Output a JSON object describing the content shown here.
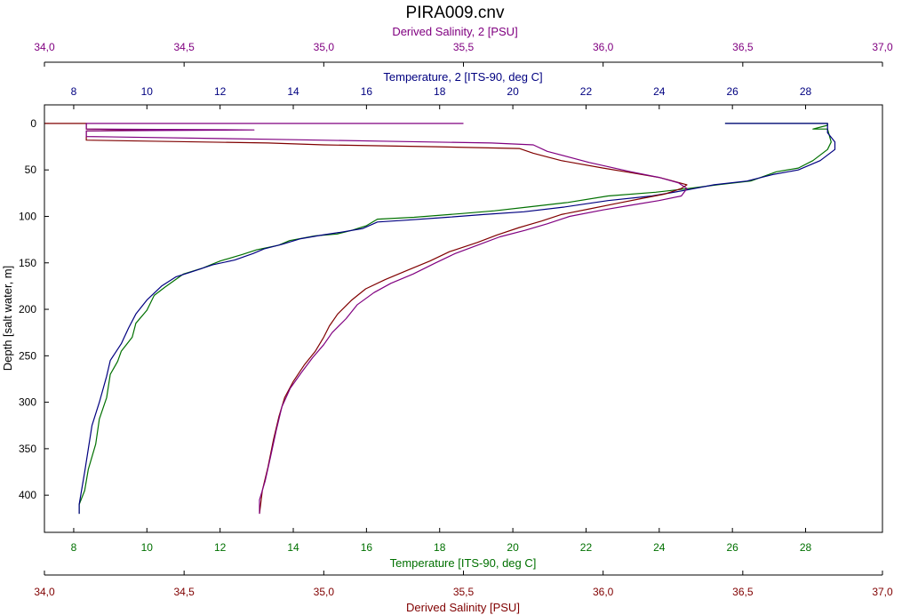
{
  "chart_data": {
    "type": "line",
    "title": "PIRA009.cnv",
    "axes": {
      "depth": {
        "label": "Depth [salt water, m]",
        "range": [
          -20,
          440
        ],
        "ticks": [
          0,
          50,
          100,
          150,
          200,
          250,
          300,
          350,
          400
        ],
        "tick_labels": [
          "0",
          "50",
          "100",
          "150",
          "200",
          "250",
          "300",
          "350",
          "400"
        ],
        "color": "#000000"
      },
      "temperature": {
        "label": "Temperature [ITS-90, deg C]",
        "range": [
          7.2,
          30.1
        ],
        "ticks": [
          8,
          10,
          12,
          14,
          16,
          18,
          20,
          22,
          24,
          26,
          28
        ],
        "tick_labels": [
          "8",
          "10",
          "12",
          "14",
          "16",
          "18",
          "20",
          "22",
          "24",
          "26",
          "28"
        ],
        "color": "#007000"
      },
      "temperature2": {
        "label": "Temperature, 2 [ITS-90, deg C]",
        "range": [
          7.2,
          30.1
        ],
        "ticks": [
          8,
          10,
          12,
          14,
          16,
          18,
          20,
          22,
          24,
          26,
          28
        ],
        "tick_labels": [
          "8",
          "10",
          "12",
          "14",
          "16",
          "18",
          "20",
          "22",
          "24",
          "26",
          "28"
        ],
        "color": "#000080"
      },
      "salinity": {
        "label": "Derived Salinity [PSU]",
        "range": [
          34.0,
          37.0
        ],
        "ticks": [
          34.0,
          34.5,
          35.0,
          35.5,
          36.0,
          36.5,
          37.0
        ],
        "tick_labels": [
          "34,0",
          "34,5",
          "35,0",
          "35,5",
          "36,0",
          "36,5",
          "37,0"
        ],
        "color": "#800000"
      },
      "salinity2": {
        "label": "Derived Salinity, 2 [PSU]",
        "range": [
          34.0,
          37.0
        ],
        "ticks": [
          34.0,
          34.5,
          35.0,
          35.5,
          36.0,
          36.5,
          37.0
        ],
        "tick_labels": [
          "34,0",
          "34,5",
          "35,0",
          "35,5",
          "36,0",
          "36,5",
          "37,0"
        ],
        "color": "#800080"
      }
    },
    "series": [
      {
        "name": "Temperature [ITS-90, deg C]",
        "axis": "temperature",
        "color": "#007000",
        "points": [
          [
            25.8,
            0
          ],
          [
            28.6,
            0
          ],
          [
            28.6,
            2
          ],
          [
            28.2,
            6
          ],
          [
            28.6,
            6
          ],
          [
            28.7,
            20
          ],
          [
            28.6,
            28
          ],
          [
            28.2,
            40
          ],
          [
            27.8,
            48
          ],
          [
            27.2,
            52
          ],
          [
            26.5,
            62
          ],
          [
            25.6,
            66
          ],
          [
            24.8,
            70
          ],
          [
            23.9,
            74
          ],
          [
            22.6,
            78
          ],
          [
            21.5,
            85
          ],
          [
            20.4,
            90
          ],
          [
            19.5,
            94
          ],
          [
            18.6,
            97
          ],
          [
            17.3,
            101
          ],
          [
            16.3,
            103
          ],
          [
            16.0,
            110
          ],
          [
            15.6,
            115
          ],
          [
            15.2,
            119
          ],
          [
            14.6,
            121
          ],
          [
            13.9,
            126
          ],
          [
            13.6,
            131
          ],
          [
            13.0,
            136
          ],
          [
            12.6,
            141
          ],
          [
            12.0,
            148
          ],
          [
            11.5,
            156
          ],
          [
            11.0,
            162
          ],
          [
            10.5,
            176
          ],
          [
            10.2,
            185
          ],
          [
            10.0,
            201
          ],
          [
            9.7,
            215
          ],
          [
            9.6,
            230
          ],
          [
            9.3,
            245
          ],
          [
            9.2,
            256
          ],
          [
            9.0,
            270
          ],
          [
            8.9,
            295
          ],
          [
            8.7,
            318
          ],
          [
            8.6,
            345
          ],
          [
            8.4,
            372
          ],
          [
            8.3,
            395
          ],
          [
            8.15,
            410
          ],
          [
            8.15,
            420
          ]
        ]
      },
      {
        "name": "Temperature, 2 [ITS-90, deg C]",
        "axis": "temperature2",
        "color": "#000080",
        "points": [
          [
            25.8,
            0
          ],
          [
            28.6,
            0
          ],
          [
            28.6,
            3
          ],
          [
            28.6,
            10
          ],
          [
            28.8,
            20
          ],
          [
            28.8,
            28
          ],
          [
            28.4,
            40
          ],
          [
            27.8,
            50
          ],
          [
            27.1,
            55
          ],
          [
            26.4,
            62
          ],
          [
            25.5,
            66
          ],
          [
            24.7,
            72
          ],
          [
            23.8,
            78
          ],
          [
            22.6,
            83
          ],
          [
            21.4,
            90
          ],
          [
            20.3,
            95
          ],
          [
            19.2,
            98
          ],
          [
            18.2,
            101
          ],
          [
            17.1,
            104
          ],
          [
            16.3,
            106
          ],
          [
            15.9,
            113
          ],
          [
            15.3,
            117
          ],
          [
            14.8,
            120
          ],
          [
            14.2,
            124
          ],
          [
            13.7,
            130
          ],
          [
            13.2,
            135
          ],
          [
            12.9,
            140
          ],
          [
            12.4,
            147
          ],
          [
            11.8,
            152
          ],
          [
            11.2,
            160
          ],
          [
            10.8,
            165
          ],
          [
            10.4,
            175
          ],
          [
            10.0,
            190
          ],
          [
            9.7,
            205
          ],
          [
            9.5,
            220
          ],
          [
            9.3,
            237
          ],
          [
            9.0,
            255
          ],
          [
            8.9,
            272
          ],
          [
            8.7,
            300
          ],
          [
            8.5,
            325
          ],
          [
            8.4,
            350
          ],
          [
            8.3,
            375
          ],
          [
            8.2,
            398
          ],
          [
            8.15,
            410
          ],
          [
            8.15,
            420
          ]
        ]
      },
      {
        "name": "Derived Salinity [PSU]",
        "axis": "salinity",
        "color": "#800000",
        "points": [
          [
            34.0,
            0
          ],
          [
            34.15,
            0
          ],
          [
            34.15,
            6
          ],
          [
            34.4,
            7
          ],
          [
            34.15,
            8
          ],
          [
            34.15,
            18
          ],
          [
            34.8,
            21
          ],
          [
            35.0,
            23
          ],
          [
            35.4,
            25
          ],
          [
            35.7,
            27
          ],
          [
            35.75,
            32
          ],
          [
            35.85,
            40
          ],
          [
            36.0,
            48
          ],
          [
            36.1,
            53
          ],
          [
            36.2,
            58
          ],
          [
            36.25,
            62
          ],
          [
            36.3,
            66
          ],
          [
            36.28,
            70
          ],
          [
            36.22,
            76
          ],
          [
            36.15,
            80
          ],
          [
            36.05,
            86
          ],
          [
            35.95,
            92
          ],
          [
            35.85,
            98
          ],
          [
            35.78,
            105
          ],
          [
            35.7,
            112
          ],
          [
            35.62,
            120
          ],
          [
            35.55,
            128
          ],
          [
            35.45,
            138
          ],
          [
            35.38,
            148
          ],
          [
            35.3,
            158
          ],
          [
            35.22,
            168
          ],
          [
            35.15,
            178
          ],
          [
            35.1,
            190
          ],
          [
            35.05,
            205
          ],
          [
            35.02,
            218
          ],
          [
            35.0,
            230
          ],
          [
            34.97,
            245
          ],
          [
            34.93,
            260
          ],
          [
            34.89,
            278
          ],
          [
            34.86,
            295
          ],
          [
            34.84,
            315
          ],
          [
            34.82,
            340
          ],
          [
            34.8,
            370
          ],
          [
            34.78,
            395
          ],
          [
            34.77,
            420
          ]
        ]
      },
      {
        "name": "Derived Salinity, 2 [PSU]",
        "axis": "salinity2",
        "color": "#800080",
        "points": [
          [
            35.5,
            0
          ],
          [
            34.15,
            0
          ],
          [
            34.15,
            6
          ],
          [
            34.75,
            7
          ],
          [
            34.15,
            8
          ],
          [
            34.15,
            14
          ],
          [
            34.8,
            17
          ],
          [
            35.2,
            19
          ],
          [
            35.6,
            21
          ],
          [
            35.75,
            23
          ],
          [
            35.8,
            30
          ],
          [
            35.95,
            42
          ],
          [
            36.1,
            52
          ],
          [
            36.2,
            58
          ],
          [
            36.27,
            64
          ],
          [
            36.3,
            70
          ],
          [
            36.28,
            78
          ],
          [
            36.2,
            83
          ],
          [
            36.1,
            88
          ],
          [
            36.0,
            93
          ],
          [
            35.88,
            100
          ],
          [
            35.8,
            108
          ],
          [
            35.72,
            115
          ],
          [
            35.63,
            122
          ],
          [
            35.55,
            131
          ],
          [
            35.47,
            140
          ],
          [
            35.4,
            150
          ],
          [
            35.32,
            162
          ],
          [
            35.24,
            172
          ],
          [
            35.18,
            182
          ],
          [
            35.12,
            195
          ],
          [
            35.08,
            210
          ],
          [
            35.03,
            225
          ],
          [
            35.0,
            238
          ],
          [
            34.96,
            252
          ],
          [
            34.92,
            268
          ],
          [
            34.88,
            285
          ],
          [
            34.85,
            305
          ],
          [
            34.83,
            330
          ],
          [
            34.81,
            358
          ],
          [
            34.79,
            385
          ],
          [
            34.77,
            405
          ],
          [
            34.77,
            420
          ]
        ]
      }
    ],
    "grid": false,
    "legend": "none"
  }
}
